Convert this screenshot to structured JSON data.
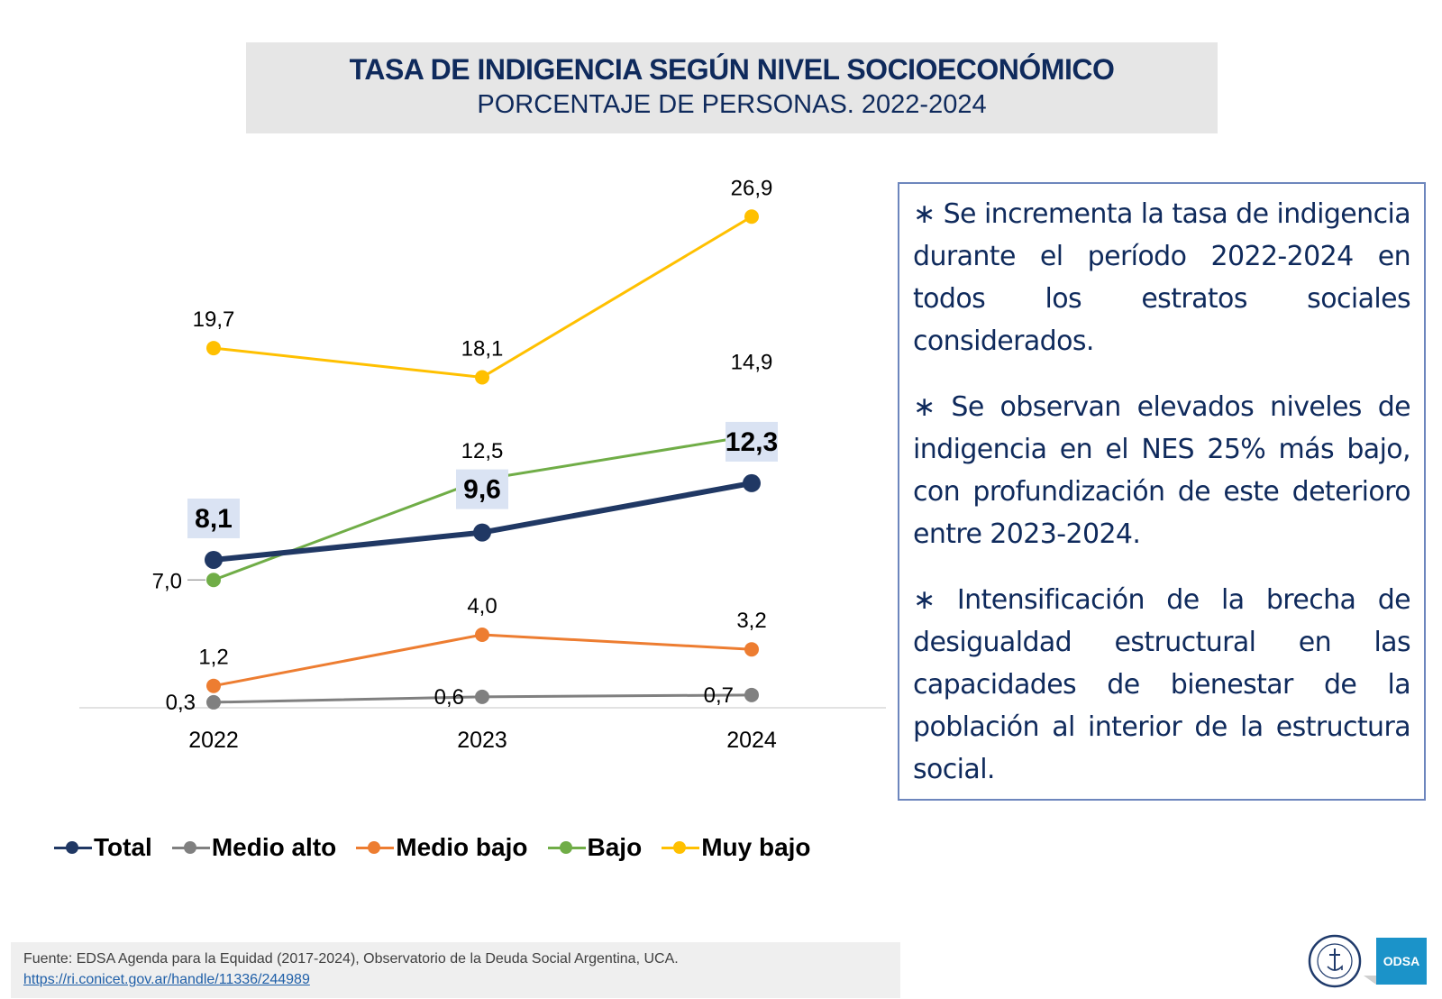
{
  "header": {
    "title": "TASA DE INDIGENCIA SEGÚN NIVEL SOCIOECONÓMICO",
    "subtitle": "PORCENTAJE DE PERSONAS. 2022-2024"
  },
  "chart_data": {
    "type": "line",
    "title": "TASA DE INDIGENCIA SEGÚN NIVEL SOCIOECONÓMICO",
    "subtitle": "PORCENTAJE DE PERSONAS. 2022-2024",
    "xlabel": "",
    "ylabel": "",
    "categories": [
      "2022",
      "2023",
      "2024"
    ],
    "ylim": [
      0,
      27
    ],
    "grid": false,
    "legend_position": "bottom",
    "series": [
      {
        "name": "Total",
        "color": "#203864",
        "values": [
          8.1,
          9.6,
          12.3
        ],
        "labels": [
          "8,1",
          "9,6",
          "12,3"
        ],
        "highlight": true
      },
      {
        "name": "Medio alto",
        "color": "#808080",
        "values": [
          0.3,
          0.6,
          0.7
        ],
        "labels": [
          "0,3",
          "0,6",
          "0,7"
        ]
      },
      {
        "name": "Medio bajo",
        "color": "#ed7d31",
        "values": [
          1.2,
          4.0,
          3.2
        ],
        "labels": [
          "1,2",
          "4,0",
          "3,2"
        ]
      },
      {
        "name": "Bajo",
        "color": "#70ad47",
        "values": [
          7.0,
          12.5,
          14.9
        ],
        "labels": [
          "7,0",
          "12,5",
          "14,9"
        ]
      },
      {
        "name": "Muy bajo",
        "color": "#ffc000",
        "values": [
          19.7,
          18.1,
          26.9
        ],
        "labels": [
          "19,7",
          "18,1",
          "26,9"
        ]
      }
    ]
  },
  "legend": [
    {
      "label": "Total",
      "color": "#203864"
    },
    {
      "label": "Medio alto",
      "color": "#808080"
    },
    {
      "label": "Medio bajo",
      "color": "#ed7d31"
    },
    {
      "label": "Bajo",
      "color": "#70ad47"
    },
    {
      "label": "Muy bajo",
      "color": "#ffc000"
    }
  ],
  "notes": [
    "∗  Se incrementa la tasa de indigencia durante el período 2022-2024 en todos los estratos sociales considerados.",
    "∗ Se observan elevados niveles de indigencia en el NES 25% más bajo, con profundización de este deterioro entre 2023-2024.",
    "∗ Intensificación de la brecha de desigualdad estructural en las capacidades de bienestar de la población al interior de la estructura social."
  ],
  "footer": {
    "source": "Fuente: EDSA Agenda para la Equidad (2017-2024), Observatorio de la Deuda Social Argentina, UCA.",
    "link": "https://ri.conicet.gov.ar/handle/11336/244989",
    "odsa_logo": "ODSA"
  }
}
